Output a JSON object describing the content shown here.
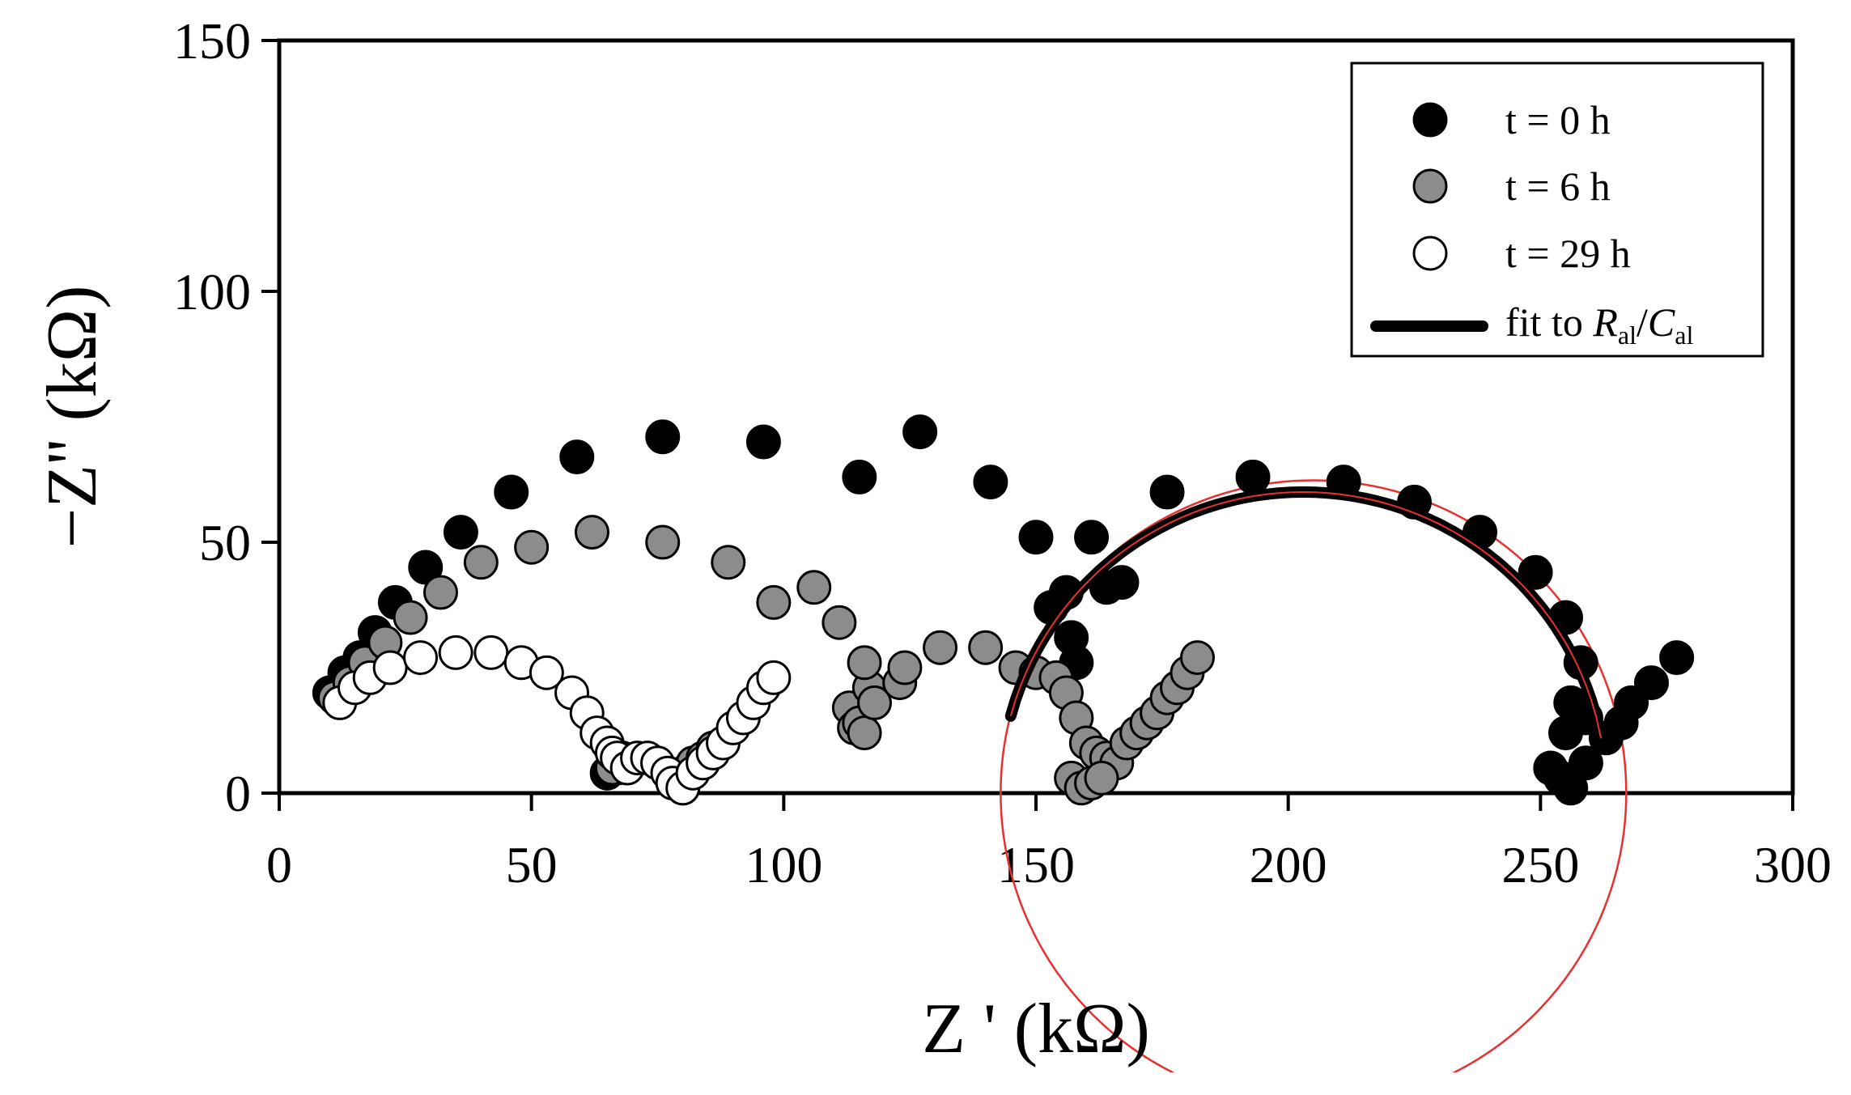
{
  "chart_data": {
    "type": "scatter",
    "xlabel": "Z ' (kΩ)",
    "ylabel": "−Z'' (kΩ)",
    "xlim": [
      0,
      300
    ],
    "ylim": [
      0,
      150
    ],
    "x_ticks": [
      0,
      50,
      100,
      150,
      200,
      250,
      300
    ],
    "y_ticks": [
      0,
      50,
      100,
      150
    ],
    "grid": false,
    "legend_position": "top-right",
    "series": [
      {
        "name": "t = 0 h",
        "marker": "filled-black",
        "fill": "#000000",
        "points": [
          [
            10,
            20
          ],
          [
            13,
            24
          ],
          [
            16,
            27
          ],
          [
            19,
            32
          ],
          [
            23,
            38
          ],
          [
            29,
            45
          ],
          [
            36,
            52
          ],
          [
            46,
            60
          ],
          [
            59,
            67
          ],
          [
            76,
            71
          ],
          [
            96,
            70
          ],
          [
            115,
            63
          ],
          [
            127,
            72
          ],
          [
            141,
            62
          ],
          [
            150,
            51
          ],
          [
            153,
            37
          ],
          [
            156,
            40
          ],
          [
            157,
            31
          ],
          [
            158,
            26
          ],
          [
            161,
            51
          ],
          [
            164,
            41
          ],
          [
            167,
            42
          ],
          [
            176,
            60
          ],
          [
            193,
            63
          ],
          [
            211,
            62
          ],
          [
            225,
            58
          ],
          [
            238,
            52
          ],
          [
            249,
            44
          ],
          [
            255,
            35
          ],
          [
            258,
            26
          ],
          [
            256,
            18
          ],
          [
            259,
            15
          ],
          [
            255,
            12
          ],
          [
            252,
            5
          ],
          [
            254,
            3
          ],
          [
            256,
            1
          ],
          [
            259,
            6
          ],
          [
            263,
            11
          ],
          [
            266,
            14
          ],
          [
            268,
            18
          ],
          [
            272,
            22
          ],
          [
            277,
            27
          ],
          [
            65,
            4
          ],
          [
            67,
            5
          ],
          [
            79,
            3
          ],
          [
            80,
            1
          ]
        ]
      },
      {
        "name": "t = 6 h",
        "marker": "filled-gray",
        "fill": "#8c8c8c",
        "points": [
          [
            11,
            19
          ],
          [
            14,
            22
          ],
          [
            17,
            26
          ],
          [
            21,
            30
          ],
          [
            26,
            35
          ],
          [
            32,
            40
          ],
          [
            40,
            46
          ],
          [
            50,
            49
          ],
          [
            62,
            52
          ],
          [
            76,
            50
          ],
          [
            89,
            46
          ],
          [
            98,
            38
          ],
          [
            106,
            41
          ],
          [
            111,
            34
          ],
          [
            113,
            17
          ],
          [
            114,
            13
          ],
          [
            115,
            14
          ],
          [
            116,
            12
          ],
          [
            117,
            21
          ],
          [
            118,
            18
          ],
          [
            116,
            26
          ],
          [
            123,
            22
          ],
          [
            124,
            25
          ],
          [
            131,
            29
          ],
          [
            140,
            29
          ],
          [
            146,
            25
          ],
          [
            150,
            24
          ],
          [
            154,
            23
          ],
          [
            156,
            20
          ],
          [
            158,
            15
          ],
          [
            160,
            10
          ],
          [
            162,
            8
          ],
          [
            164,
            7
          ],
          [
            166,
            6
          ],
          [
            168,
            10
          ],
          [
            170,
            12
          ],
          [
            172,
            14
          ],
          [
            174,
            16
          ],
          [
            176,
            19
          ],
          [
            178,
            21
          ],
          [
            180,
            24
          ],
          [
            182,
            27
          ],
          [
            157,
            3
          ],
          [
            159,
            1
          ],
          [
            161,
            2
          ],
          [
            163,
            3
          ],
          [
            66,
            5
          ],
          [
            68,
            7
          ],
          [
            78,
            3
          ],
          [
            80,
            4
          ],
          [
            82,
            6
          ],
          [
            84,
            7
          ],
          [
            86,
            9
          ]
        ]
      },
      {
        "name": "t = 29 h",
        "marker": "open",
        "fill": "#ffffff",
        "points": [
          [
            12,
            18
          ],
          [
            15,
            21
          ],
          [
            18,
            23
          ],
          [
            22,
            25
          ],
          [
            28,
            27
          ],
          [
            35,
            28
          ],
          [
            42,
            28
          ],
          [
            48,
            26
          ],
          [
            53,
            24
          ],
          [
            58,
            20
          ],
          [
            61,
            16
          ],
          [
            63,
            12
          ],
          [
            65,
            10
          ],
          [
            66,
            8
          ],
          [
            67,
            7
          ],
          [
            69,
            5
          ],
          [
            71,
            7
          ],
          [
            73,
            7
          ],
          [
            75,
            6
          ],
          [
            77,
            4
          ],
          [
            78,
            2
          ],
          [
            80,
            1
          ],
          [
            82,
            4
          ],
          [
            84,
            6
          ],
          [
            86,
            8
          ],
          [
            88,
            10
          ],
          [
            90,
            13
          ],
          [
            92,
            15
          ],
          [
            94,
            18
          ],
          [
            96,
            21
          ],
          [
            98,
            23
          ]
        ]
      }
    ],
    "fit_curve": {
      "name": "fit to R_al/C_al",
      "legend_label_prefix": "fit to ",
      "legend_r": "R",
      "legend_c": "C",
      "legend_sub": "al",
      "legend_slash": "/",
      "color": "#000000",
      "center_x": 203,
      "radius": 60,
      "z_min": 145,
      "z_max": 262
    },
    "annotation_circle": {
      "color": "#e83030",
      "center_x": 205,
      "center_y": 0,
      "radius": 62
    }
  }
}
